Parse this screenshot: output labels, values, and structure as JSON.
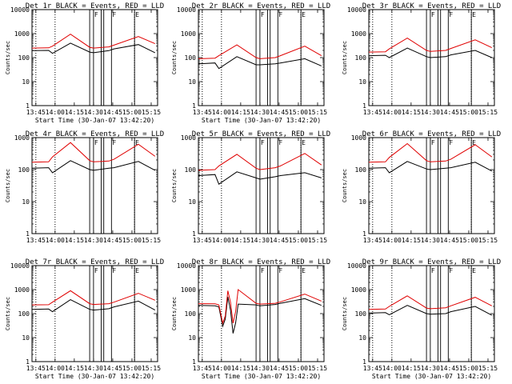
{
  "chart_data": [
    {
      "type": "line",
      "title": "Det 1r BLACK = Events, RED = LLD",
      "xlabel": "Start Time (30-Jan-07 13:42:20)",
      "ylabel": "Counts/sec",
      "yscale": "log",
      "ylim": [
        1,
        10000
      ],
      "xlim": [
        "13:42",
        "15:20"
      ],
      "x_ticks": [
        "13:45",
        "14:00",
        "14:15",
        "14:30",
        "14:45",
        "15:00",
        "15:15"
      ],
      "y_ticks": [
        "1",
        "10",
        "100",
        "1000",
        "10000"
      ],
      "markers": [
        {
          "label": "F",
          "x": "14:30"
        },
        {
          "label": "F",
          "x": "14:44"
        },
        {
          "label": "E",
          "x": "15:02"
        }
      ],
      "dotted_lines": [
        "13:45",
        "14:00",
        "15:02"
      ],
      "solid_lines": [
        "14:27",
        "14:30",
        "14:36",
        "14:38",
        "14:44",
        "15:02"
      ],
      "series": [
        {
          "name": "Events",
          "color": "#000000",
          "x": [
            "13:42",
            "13:55",
            "13:58",
            "14:12",
            "14:27",
            "14:30",
            "14:42",
            "14:46",
            "15:05",
            "15:18"
          ],
          "y": [
            195,
            200,
            150,
            400,
            170,
            160,
            195,
            230,
            350,
            160
          ]
        },
        {
          "name": "LLD",
          "color": "#e00000",
          "x": [
            "13:42",
            "13:55",
            "13:58",
            "14:12",
            "14:27",
            "14:30",
            "14:42",
            "14:46",
            "15:05",
            "15:18"
          ],
          "y": [
            250,
            255,
            300,
            950,
            270,
            250,
            280,
            330,
            750,
            380
          ]
        }
      ]
    },
    {
      "type": "line",
      "title": "Det 2r BLACK = Events, RED = LLD",
      "xlabel": "Start Time (30-Jan-07 13:42:20)",
      "ylabel": "Counts/sec",
      "yscale": "log",
      "ylim": [
        1,
        10000
      ],
      "xlim": [
        "13:42",
        "15:20"
      ],
      "x_ticks": [
        "13:45",
        "14:00",
        "14:15",
        "14:30",
        "14:45",
        "15:00",
        "15:15"
      ],
      "y_ticks": [
        "1",
        "10",
        "100",
        "1000",
        "10000"
      ],
      "markers": [
        {
          "label": "F",
          "x": "14:30"
        },
        {
          "label": "F",
          "x": "14:44"
        },
        {
          "label": "E",
          "x": "15:02"
        }
      ],
      "dotted_lines": [
        "13:45",
        "14:00",
        "15:02"
      ],
      "solid_lines": [
        "14:27",
        "14:30",
        "14:36",
        "14:38",
        "14:44",
        "15:02"
      ],
      "series": [
        {
          "name": "Events",
          "color": "#000000",
          "x": [
            "13:42",
            "13:55",
            "13:58",
            "14:12",
            "14:27",
            "14:30",
            "14:42",
            "14:46",
            "15:05",
            "15:18"
          ],
          "y": [
            55,
            60,
            35,
            110,
            50,
            50,
            55,
            60,
            90,
            45
          ]
        },
        {
          "name": "LLD",
          "color": "#e00000",
          "x": [
            "13:42",
            "13:55",
            "13:58",
            "14:12",
            "14:27",
            "14:30",
            "14:42",
            "14:46",
            "15:05",
            "15:18"
          ],
          "y": [
            90,
            95,
            120,
            340,
            100,
            90,
            100,
            120,
            300,
            120
          ]
        }
      ]
    },
    {
      "type": "line",
      "title": "Det 3r BLACK = Events, RED = LLD",
      "xlabel": "",
      "ylabel": "Counts/sec",
      "yscale": "log",
      "ylim": [
        1,
        10000
      ],
      "xlim": [
        "13:42",
        "15:20"
      ],
      "x_ticks": [
        "13:45",
        "14:00",
        "14:15",
        "14:30",
        "14:45",
        "15:00",
        "15:15"
      ],
      "y_ticks": [
        "1",
        "10",
        "100",
        "1000",
        "10000"
      ],
      "markers": [
        {
          "label": "F",
          "x": "14:30"
        },
        {
          "label": "F",
          "x": "14:44"
        },
        {
          "label": "E",
          "x": "15:02"
        }
      ],
      "dotted_lines": [
        "13:45",
        "14:00",
        "15:02"
      ],
      "solid_lines": [
        "14:27",
        "14:30",
        "14:36",
        "14:38",
        "14:44",
        "15:02"
      ],
      "series": [
        {
          "name": "Events",
          "color": "#000000",
          "x": [
            "13:42",
            "13:55",
            "13:58",
            "14:12",
            "14:27",
            "14:30",
            "14:42",
            "14:46",
            "15:05",
            "15:18"
          ],
          "y": [
            120,
            125,
            100,
            250,
            110,
            100,
            110,
            130,
            200,
            100
          ]
        },
        {
          "name": "LLD",
          "color": "#e00000",
          "x": [
            "13:42",
            "13:55",
            "13:58",
            "14:12",
            "14:27",
            "14:30",
            "14:42",
            "14:46",
            "15:05",
            "15:18"
          ],
          "y": [
            170,
            175,
            230,
            650,
            200,
            180,
            200,
            240,
            550,
            260
          ]
        }
      ]
    },
    {
      "type": "line",
      "title": "Det 4r BLACK = Events, RED = LLD",
      "xlabel": "",
      "ylabel": "Counts/sec",
      "yscale": "log",
      "ylim": [
        1,
        1000
      ],
      "xlim": [
        "13:42",
        "15:20"
      ],
      "x_ticks": [
        "13:45",
        "14:00",
        "14:15",
        "14:30",
        "14:45",
        "15:00",
        "15:15"
      ],
      "y_ticks": [
        "1",
        "10",
        "100",
        "1000"
      ],
      "markers": [
        {
          "label": "F",
          "x": "14:30"
        },
        {
          "label": "F",
          "x": "14:44"
        },
        {
          "label": "E",
          "x": "15:02"
        }
      ],
      "dotted_lines": [
        "13:45",
        "14:00",
        "15:02"
      ],
      "solid_lines": [
        "14:27",
        "14:30",
        "14:36",
        "14:38",
        "14:44",
        "15:02"
      ],
      "series": [
        {
          "name": "Events",
          "color": "#000000",
          "x": [
            "13:42",
            "13:55",
            "13:58",
            "14:12",
            "14:27",
            "14:30",
            "14:42",
            "14:46",
            "15:05",
            "15:18"
          ],
          "y": [
            110,
            115,
            80,
            190,
            100,
            95,
            110,
            115,
            180,
            95
          ]
        },
        {
          "name": "LLD",
          "color": "#e00000",
          "x": [
            "13:42",
            "13:55",
            "13:58",
            "14:12",
            "14:27",
            "14:30",
            "14:42",
            "14:46",
            "15:05",
            "15:18"
          ],
          "y": [
            170,
            175,
            250,
            700,
            190,
            175,
            185,
            210,
            620,
            260
          ]
        }
      ]
    },
    {
      "type": "line",
      "title": "Det 5r BLACK = Events, RED = LLD",
      "xlabel": "",
      "ylabel": "Counts/sec",
      "yscale": "log",
      "ylim": [
        1,
        1000
      ],
      "xlim": [
        "13:42",
        "15:20"
      ],
      "x_ticks": [
        "13:45",
        "14:00",
        "14:15",
        "14:30",
        "14:45",
        "15:00",
        "15:15"
      ],
      "y_ticks": [
        "1",
        "10",
        "100",
        "1000"
      ],
      "markers": [
        {
          "label": "F",
          "x": "14:30"
        },
        {
          "label": "F",
          "x": "14:44"
        },
        {
          "label": "E",
          "x": "15:02"
        }
      ],
      "dotted_lines": [
        "13:45",
        "14:00",
        "15:02"
      ],
      "solid_lines": [
        "14:27",
        "14:30",
        "14:36",
        "14:38",
        "14:44",
        "15:02"
      ],
      "series": [
        {
          "name": "Events",
          "color": "#000000",
          "x": [
            "13:42",
            "13:55",
            "13:58",
            "14:12",
            "14:27",
            "14:30",
            "14:42",
            "14:46",
            "15:05",
            "15:18"
          ],
          "y": [
            65,
            70,
            35,
            85,
            55,
            50,
            60,
            65,
            80,
            55
          ]
        },
        {
          "name": "LLD",
          "color": "#e00000",
          "x": [
            "13:42",
            "13:55",
            "13:58",
            "14:12",
            "14:27",
            "14:30",
            "14:42",
            "14:46",
            "15:05",
            "15:18"
          ],
          "y": [
            95,
            100,
            130,
            300,
            110,
            100,
            115,
            130,
            320,
            140
          ]
        }
      ]
    },
    {
      "type": "line",
      "title": "Det 6r BLACK = Events, RED = LLD",
      "xlabel": "",
      "ylabel": "Counts/sec",
      "yscale": "log",
      "ylim": [
        1,
        1000
      ],
      "xlim": [
        "13:42",
        "15:20"
      ],
      "x_ticks": [
        "13:45",
        "14:00",
        "14:15",
        "14:30",
        "14:45",
        "15:00",
        "15:15"
      ],
      "y_ticks": [
        "1",
        "10",
        "100",
        "1000"
      ],
      "markers": [
        {
          "label": "F",
          "x": "14:30"
        },
        {
          "label": "F",
          "x": "14:44"
        },
        {
          "label": "E",
          "x": "15:02"
        }
      ],
      "dotted_lines": [
        "13:45",
        "14:00",
        "15:02"
      ],
      "solid_lines": [
        "14:27",
        "14:30",
        "14:36",
        "14:38",
        "14:44",
        "15:02"
      ],
      "series": [
        {
          "name": "Events",
          "color": "#000000",
          "x": [
            "13:42",
            "13:55",
            "13:58",
            "14:12",
            "14:27",
            "14:30",
            "14:42",
            "14:46",
            "15:05",
            "15:18"
          ],
          "y": [
            110,
            115,
            80,
            180,
            105,
            100,
            110,
            115,
            170,
            90
          ]
        },
        {
          "name": "LLD",
          "color": "#e00000",
          "x": [
            "13:42",
            "13:55",
            "13:58",
            "14:12",
            "14:27",
            "14:30",
            "14:42",
            "14:46",
            "15:05",
            "15:18"
          ],
          "y": [
            170,
            175,
            240,
            650,
            190,
            175,
            185,
            210,
            600,
            250
          ]
        }
      ]
    },
    {
      "type": "line",
      "title": "Det 7r BLACK = Events, RED = LLD",
      "xlabel": "Start Time (30-Jan-07 13:42:20)",
      "ylabel": "Counts/sec",
      "yscale": "log",
      "ylim": [
        1,
        10000
      ],
      "xlim": [
        "13:42",
        "15:20"
      ],
      "x_ticks": [
        "13:45",
        "14:00",
        "14:15",
        "14:30",
        "14:45",
        "15:00",
        "15:15"
      ],
      "y_ticks": [
        "1",
        "10",
        "100",
        "1000",
        "10000"
      ],
      "markers": [
        {
          "label": "F",
          "x": "14:30"
        },
        {
          "label": "F",
          "x": "14:44"
        },
        {
          "label": "E",
          "x": "15:02"
        }
      ],
      "dotted_lines": [
        "13:45",
        "14:00",
        "15:02"
      ],
      "solid_lines": [
        "14:27",
        "14:30",
        "14:36",
        "14:38",
        "14:44",
        "15:02"
      ],
      "series": [
        {
          "name": "Events",
          "color": "#000000",
          "x": [
            "13:42",
            "13:55",
            "13:58",
            "14:12",
            "14:27",
            "14:30",
            "14:42",
            "14:46",
            "15:05",
            "15:18"
          ],
          "y": [
            150,
            155,
            120,
            380,
            150,
            140,
            160,
            190,
            330,
            140
          ]
        },
        {
          "name": "LLD",
          "color": "#e00000",
          "x": [
            "13:42",
            "13:55",
            "13:58",
            "14:12",
            "14:27",
            "14:30",
            "14:42",
            "14:46",
            "15:05",
            "15:18"
          ],
          "y": [
            230,
            235,
            300,
            900,
            260,
            240,
            260,
            300,
            700,
            360
          ]
        }
      ]
    },
    {
      "type": "line",
      "title": "Det 8r BLACK = Events, RED = LLD",
      "xlabel": "Start Time (30-Jan-07 13:42:20)",
      "ylabel": "Counts/sec",
      "yscale": "log",
      "ylim": [
        1,
        10000
      ],
      "xlim": [
        "13:42",
        "15:20"
      ],
      "x_ticks": [
        "13:45",
        "14:00",
        "14:15",
        "14:30",
        "14:45",
        "15:00",
        "15:15"
      ],
      "y_ticks": [
        "1",
        "10",
        "100",
        "1000",
        "10000"
      ],
      "markers": [
        {
          "label": "F",
          "x": "14:30"
        },
        {
          "label": "F",
          "x": "14:44"
        },
        {
          "label": "E",
          "x": "15:02"
        }
      ],
      "dotted_lines": [
        "13:45",
        "14:00",
        "15:02"
      ],
      "solid_lines": [
        "14:27",
        "14:30",
        "14:36",
        "14:38",
        "14:44",
        "15:02"
      ],
      "series": [
        {
          "name": "Events",
          "color": "#000000",
          "x": [
            "13:42",
            "13:55",
            "13:58",
            "14:01",
            "14:03",
            "14:05",
            "14:07",
            "14:09",
            "14:11",
            "14:13",
            "14:27",
            "14:30",
            "14:42",
            "14:46",
            "15:05",
            "15:18"
          ],
          "y": [
            220,
            210,
            190,
            30,
            60,
            500,
            140,
            15,
            40,
            250,
            230,
            210,
            240,
            270,
            420,
            220
          ]
        },
        {
          "name": "LLD",
          "color": "#e00000",
          "x": [
            "13:42",
            "13:55",
            "13:58",
            "14:01",
            "14:03",
            "14:05",
            "14:07",
            "14:09",
            "14:11",
            "14:13",
            "14:27",
            "14:30",
            "14:42",
            "14:46",
            "15:05",
            "15:18"
          ],
          "y": [
            260,
            255,
            230,
            40,
            80,
            900,
            300,
            40,
            120,
            1000,
            270,
            250,
            270,
            310,
            650,
            330
          ]
        }
      ]
    },
    {
      "type": "line",
      "title": "Det 9r BLACK = Events, RED = LLD",
      "xlabel": "Start Time (30-Jan-07 13:42:20)",
      "ylabel": "Counts/sec",
      "yscale": "log",
      "ylim": [
        1,
        10000
      ],
      "xlim": [
        "13:42",
        "15:20"
      ],
      "x_ticks": [
        "13:45",
        "14:00",
        "14:15",
        "14:30",
        "14:45",
        "15:00",
        "15:15"
      ],
      "y_ticks": [
        "1",
        "10",
        "100",
        "1000",
        "10000"
      ],
      "markers": [
        {
          "label": "F",
          "x": "14:30"
        },
        {
          "label": "F",
          "x": "14:44"
        },
        {
          "label": "E",
          "x": "15:02"
        }
      ],
      "dotted_lines": [
        "13:45",
        "14:00",
        "15:02"
      ],
      "solid_lines": [
        "14:27",
        "14:30",
        "14:36",
        "14:38",
        "14:44",
        "15:02"
      ],
      "series": [
        {
          "name": "Events",
          "color": "#000000",
          "x": [
            "13:42",
            "13:55",
            "13:58",
            "14:12",
            "14:27",
            "14:30",
            "14:42",
            "14:46",
            "15:05",
            "15:18"
          ],
          "y": [
            105,
            110,
            90,
            220,
            100,
            95,
            100,
            120,
            200,
            85
          ]
        },
        {
          "name": "LLD",
          "color": "#e00000",
          "x": [
            "13:42",
            "13:55",
            "13:58",
            "14:12",
            "14:27",
            "14:30",
            "14:42",
            "14:46",
            "15:05",
            "15:18"
          ],
          "y": [
            150,
            155,
            200,
            550,
            170,
            160,
            175,
            210,
            480,
            210
          ]
        }
      ]
    }
  ]
}
